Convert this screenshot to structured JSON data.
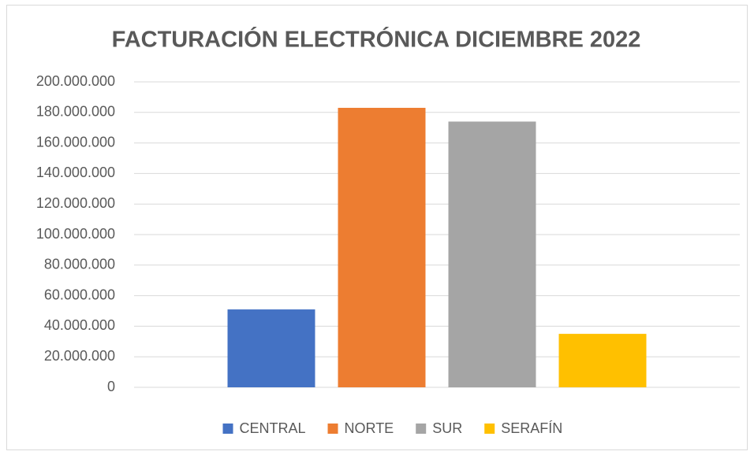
{
  "chart_data": {
    "type": "bar",
    "title": "FACTURACIÓN ELECTRÓNICA DICIEMBRE 2022",
    "categories": [
      null
    ],
    "series": [
      {
        "name": "CENTRAL",
        "color": "#4472c4",
        "values": [
          51000000
        ]
      },
      {
        "name": "NORTE",
        "color": "#ed7d31",
        "values": [
          183000000
        ]
      },
      {
        "name": "SUR",
        "color": "#a5a5a5",
        "values": [
          174000000
        ]
      },
      {
        "name": "SERAFÍN",
        "color": "#ffc000",
        "values": [
          35000000
        ]
      }
    ],
    "ylim": [
      0,
      200000000
    ],
    "yticks": [
      0,
      {
        "value": 20000000,
        "label": "20.000.000"
      },
      {
        "value": 40000000,
        "label": "40.000.000"
      },
      {
        "value": 60000000,
        "label": "60.000.000"
      },
      {
        "value": 80000000,
        "label": "80.000.000"
      },
      {
        "value": 100000000,
        "label": "100.000.000"
      },
      {
        "value": 120000000,
        "label": "120.000.000"
      },
      {
        "value": 140000000,
        "label": "140.000.000"
      },
      {
        "value": 160000000,
        "label": "160.000.000"
      },
      {
        "value": 180000000,
        "label": "180.000.000"
      },
      {
        "value": 200000000,
        "label": "200.000.000"
      }
    ],
    "grid": true,
    "legend": "bottom"
  }
}
